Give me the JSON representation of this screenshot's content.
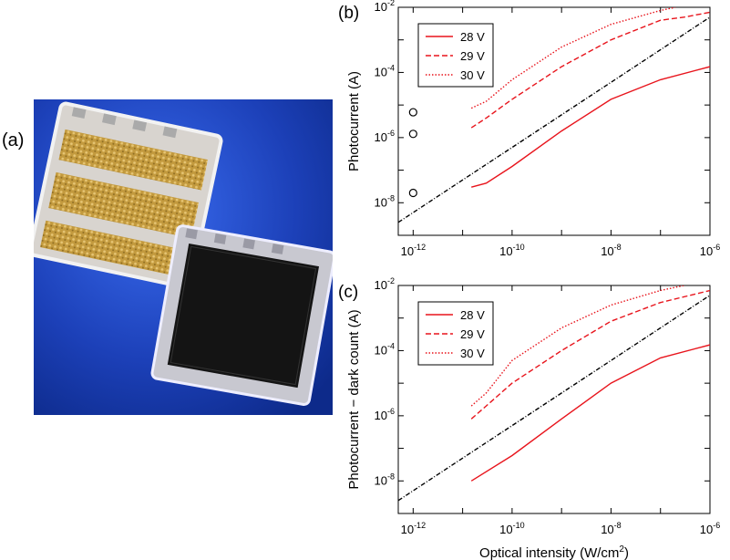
{
  "labels": {
    "panel_a": "(a)",
    "panel_b": "(b)",
    "panel_c": "(c)"
  },
  "colors": {
    "series_red": "#e8141c",
    "reference_line": "#000000",
    "photo_background": "#1a3fb0",
    "gold_pad": "#c9a24a",
    "dark_chip": "#141414"
  },
  "chart_data": [
    {
      "id": "b",
      "type": "line",
      "log_x": true,
      "log_y": true,
      "xlim": [
        5e-13,
        1e-06
      ],
      "ylim": [
        1e-09,
        0.01
      ],
      "x_ticks": [
        1e-12,
        1e-10,
        1e-08,
        1e-06
      ],
      "x_tick_labels": [
        "10^-12",
        "10^-10",
        "10^-8",
        "10^-6"
      ],
      "y_ticks": [
        1e-08,
        1e-06,
        0.0001,
        0.01
      ],
      "y_tick_labels": [
        "10^-8",
        "10^-6",
        "10^-4",
        "10^-2"
      ],
      "ylabel": "Photocurrent (A)",
      "xlabel": "",
      "legend_position": "top-left",
      "series": [
        {
          "name": "28 V",
          "style": "solid",
          "x": [
            1.5e-11,
            3e-11,
            1e-10,
            1e-09,
            1e-08,
            1e-07,
            1e-06
          ],
          "y": [
            3e-08,
            4e-08,
            1.3e-07,
            1.6e-06,
            1.5e-05,
            6e-05,
            0.00015
          ]
        },
        {
          "name": "29 V",
          "style": "dashed",
          "x": [
            1.5e-11,
            3e-11,
            1e-10,
            1e-09,
            1e-08,
            1e-07,
            3e-07,
            1e-06
          ],
          "y": [
            2e-06,
            4e-06,
            1.5e-05,
            0.00015,
            0.001,
            0.004,
            0.005,
            0.007
          ]
        },
        {
          "name": "30 V",
          "style": "dotted",
          "x": [
            1.5e-11,
            3e-11,
            1e-10,
            1e-09,
            1e-08,
            1e-07,
            2e-07
          ],
          "y": [
            8e-06,
            1.3e-05,
            6e-05,
            0.0006,
            0.003,
            0.008,
            0.01
          ]
        },
        {
          "name": "",
          "style": "dashdot-black",
          "x": [
            5e-13,
            1e-06
          ],
          "y": [
            2.5e-09,
            0.005
          ]
        }
      ],
      "markers": {
        "style": "open-circle",
        "x": [
          1e-12,
          1e-12,
          1e-12
        ],
        "y": [
          6e-06,
          1.3e-06,
          2e-08
        ]
      }
    },
    {
      "id": "c",
      "type": "line",
      "log_x": true,
      "log_y": true,
      "xlim": [
        5e-13,
        1e-06
      ],
      "ylim": [
        1e-09,
        0.01
      ],
      "x_ticks": [
        1e-12,
        1e-10,
        1e-08,
        1e-06
      ],
      "x_tick_labels": [
        "10^-12",
        "10^-10",
        "10^-8",
        "10^-6"
      ],
      "y_ticks": [
        1e-08,
        1e-06,
        0.0001,
        0.01
      ],
      "y_tick_labels": [
        "10^-8",
        "10^-6",
        "10^-4",
        "10^-2"
      ],
      "ylabel": "Photocurrent − dark count (A)",
      "xlabel": "Optical intensity (W/cm^2)",
      "legend_position": "top-left",
      "series": [
        {
          "name": "28 V",
          "style": "solid",
          "x": [
            1.5e-11,
            1e-10,
            1e-09,
            1e-08,
            1e-07,
            1e-06
          ],
          "y": [
            1e-08,
            6e-08,
            8e-07,
            1e-05,
            6e-05,
            0.00015
          ]
        },
        {
          "name": "29 V",
          "style": "dashed",
          "x": [
            1.5e-11,
            3e-11,
            1e-10,
            1e-09,
            1e-08,
            1e-07,
            1e-06
          ],
          "y": [
            8e-07,
            2e-06,
            1e-05,
            0.0001,
            0.0008,
            0.003,
            0.007
          ]
        },
        {
          "name": "30 V",
          "style": "dotted",
          "x": [
            1.5e-11,
            3e-11,
            1e-10,
            1e-09,
            1e-08,
            1e-07,
            3e-07
          ],
          "y": [
            2e-06,
            5e-06,
            5e-05,
            0.0005,
            0.0025,
            0.007,
            0.01
          ]
        },
        {
          "name": "",
          "style": "dashdot-black",
          "x": [
            5e-13,
            1e-06
          ],
          "y": [
            2.5e-09,
            0.005
          ]
        }
      ]
    }
  ]
}
